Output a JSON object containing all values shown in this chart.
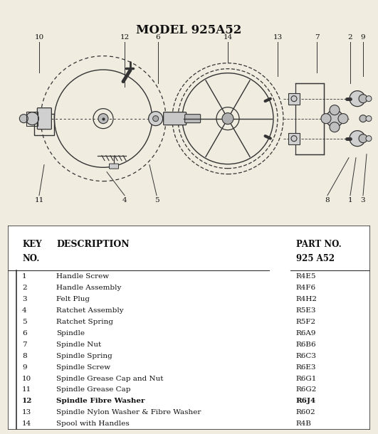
{
  "title": "MODEL 925A52",
  "bg_color": "#f0ece0",
  "line_color": "#333333",
  "parts": [
    [
      "1",
      "Handle Screw",
      "R4E5"
    ],
    [
      "2",
      "Handle Assembly",
      "R4F6"
    ],
    [
      "3",
      "Felt Plug",
      "R4H2"
    ],
    [
      "4",
      "Ratchet Assembly",
      "R5E3"
    ],
    [
      "5",
      "Ratchet Spring",
      "R5F2"
    ],
    [
      "6",
      "Spindle",
      "R6A9"
    ],
    [
      "7",
      "Spindle Nut",
      "R6B6"
    ],
    [
      "8",
      "Spindle Spring",
      "R6C3"
    ],
    [
      "9",
      "Spindle Screw",
      "R6E3"
    ],
    [
      "10",
      "Spindle Grease Cap and Nut",
      "R6G1"
    ],
    [
      "11",
      "Spindle Grease Cap",
      "R6G2"
    ],
    [
      "12",
      "Spindle Fibre Washer",
      "R6J4"
    ],
    [
      "13",
      "Spindle Nylon Washer & Fibre Washer",
      "R602"
    ],
    [
      "14",
      "Spool with Handles",
      "R4B"
    ]
  ]
}
